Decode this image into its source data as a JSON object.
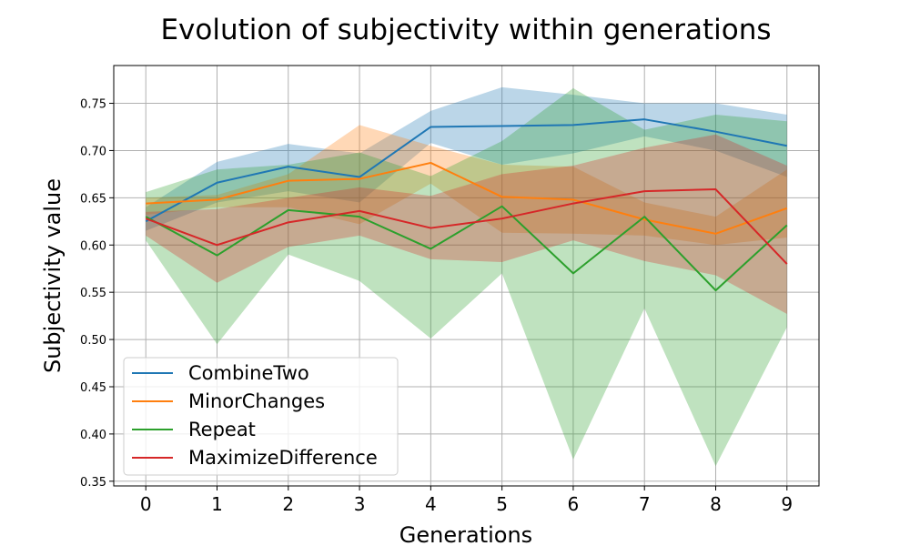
{
  "chart_data": {
    "type": "line",
    "title": "Evolution of subjectivity within generations",
    "xlabel": "Generations",
    "ylabel": "Subjectivity value",
    "x": [
      0,
      1,
      2,
      3,
      4,
      5,
      6,
      7,
      8,
      9
    ],
    "xlim": [
      -0.45,
      9.45
    ],
    "ylim": [
      0.345,
      0.79
    ],
    "yticks": [
      0.35,
      0.4,
      0.45,
      0.5,
      0.55,
      0.6,
      0.65,
      0.7,
      0.75
    ],
    "ytick_labels": [
      "0.35",
      "0.40",
      "0.45",
      "0.50",
      "0.55",
      "0.60",
      "0.65",
      "0.70",
      "0.75"
    ],
    "xtick_labels": [
      "0",
      "1",
      "2",
      "3",
      "4",
      "5",
      "6",
      "7",
      "8",
      "9"
    ],
    "grid": true,
    "legend_position": "lower-left",
    "band_opacity": 0.3,
    "series": [
      {
        "name": "CombineTwo",
        "color": "#1f77b4",
        "values": [
          0.625,
          0.666,
          0.683,
          0.672,
          0.725,
          0.726,
          0.727,
          0.733,
          0.72,
          0.705
        ],
        "lower": [
          0.615,
          0.645,
          0.657,
          0.645,
          0.708,
          0.685,
          0.697,
          0.715,
          0.7,
          0.672
        ],
        "upper": [
          0.64,
          0.688,
          0.707,
          0.697,
          0.742,
          0.767,
          0.759,
          0.75,
          0.75,
          0.738
        ]
      },
      {
        "name": "MinorChanges",
        "color": "#ff7f0e",
        "values": [
          0.644,
          0.648,
          0.668,
          0.67,
          0.687,
          0.651,
          0.648,
          0.627,
          0.612,
          0.639
        ],
        "lower": [
          0.632,
          0.64,
          0.64,
          0.622,
          0.665,
          0.613,
          0.612,
          0.61,
          0.6,
          0.608
        ],
        "upper": [
          0.65,
          0.653,
          0.675,
          0.727,
          0.705,
          0.685,
          0.683,
          0.645,
          0.63,
          0.68
        ]
      },
      {
        "name": "Repeat",
        "color": "#2ca02c",
        "values": [
          0.63,
          0.589,
          0.637,
          0.63,
          0.596,
          0.641,
          0.57,
          0.63,
          0.552,
          0.621
        ],
        "lower": [
          0.605,
          0.495,
          0.59,
          0.562,
          0.501,
          0.57,
          0.373,
          0.533,
          0.366,
          0.513
        ],
        "upper": [
          0.656,
          0.68,
          0.685,
          0.698,
          0.673,
          0.71,
          0.766,
          0.722,
          0.738,
          0.731
        ]
      },
      {
        "name": "MaximizeDifference",
        "color": "#d62728",
        "values": [
          0.628,
          0.6,
          0.624,
          0.636,
          0.618,
          0.628,
          0.644,
          0.657,
          0.659,
          0.58
        ],
        "lower": [
          0.61,
          0.56,
          0.598,
          0.61,
          0.585,
          0.582,
          0.605,
          0.583,
          0.568,
          0.527
        ],
        "upper": [
          0.635,
          0.638,
          0.65,
          0.661,
          0.652,
          0.675,
          0.684,
          0.703,
          0.717,
          0.684
        ]
      }
    ]
  }
}
